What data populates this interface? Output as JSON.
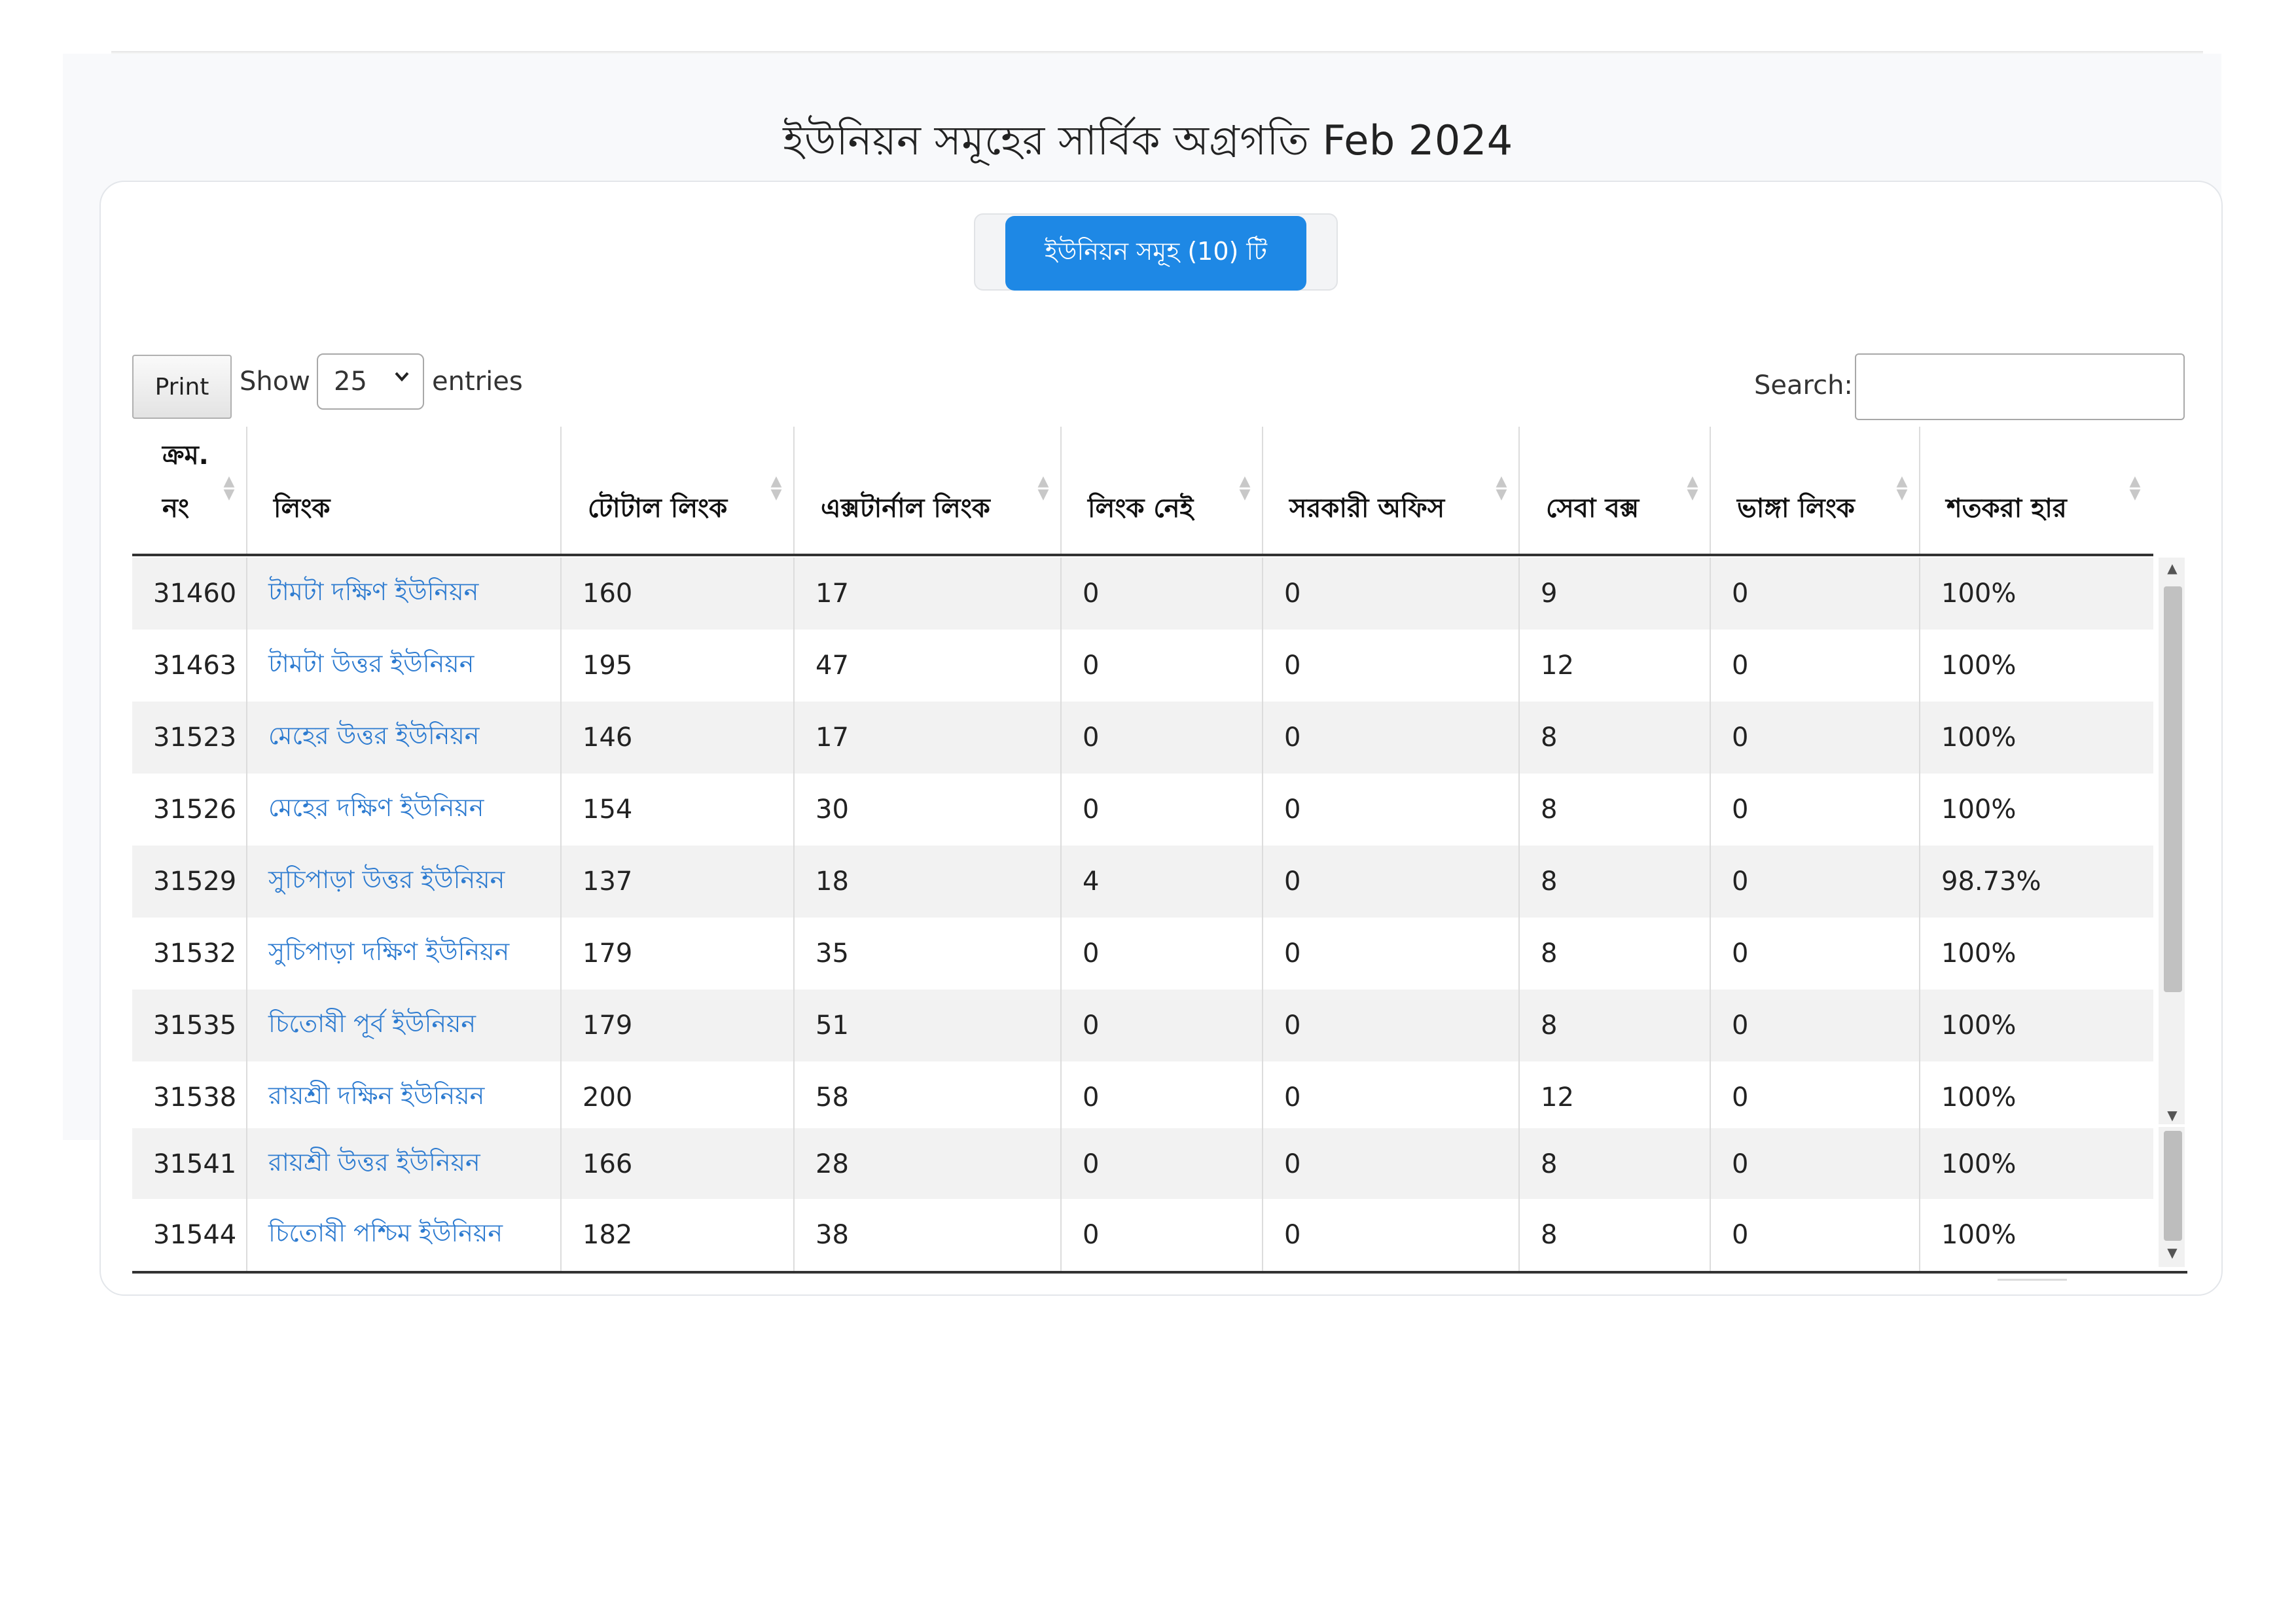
{
  "page": {
    "title": "ইউনিয়ন সমূহের সার্বিক অগ্রগতি Feb 2024"
  },
  "toolbar": {
    "union_button_label": "ইউনিয়ন সমূহ (10) টি",
    "print_label": "Print",
    "show_label": "Show",
    "entries_value": "25",
    "entries_label": "entries",
    "search_label": "Search:",
    "search_value": ""
  },
  "table": {
    "headers": [
      "ক্রম. নং",
      "লিংক",
      "টোটাল লিংক",
      "এক্সটার্নাল লিংক",
      "লিংক নেই",
      "সরকারী অফিস",
      "সেবা বক্স",
      "ভাঙ্গা লিংক",
      "শতকরা হার"
    ],
    "header_line1": "ক্রম.",
    "header_line2": "নং",
    "rows": [
      [
        "31460",
        "টামটা দক্ষিণ ইউনিয়ন",
        "160",
        "17",
        "0",
        "0",
        "9",
        "0",
        "100%"
      ],
      [
        "31463",
        "টামটা উত্তর ইউনিয়ন",
        "195",
        "47",
        "0",
        "0",
        "12",
        "0",
        "100%"
      ],
      [
        "31523",
        "মেহের উত্তর ইউনিয়ন",
        "146",
        "17",
        "0",
        "0",
        "8",
        "0",
        "100%"
      ],
      [
        "31526",
        "মেহের দক্ষিণ ইউনিয়ন",
        "154",
        "30",
        "0",
        "0",
        "8",
        "0",
        "100%"
      ],
      [
        "31529",
        "সুচিপাড়া উত্তর ইউনিয়ন",
        "137",
        "18",
        "4",
        "0",
        "8",
        "0",
        "98.73%"
      ],
      [
        "31532",
        "সুচিপাড়া দক্ষিণ ইউনিয়ন",
        "179",
        "35",
        "0",
        "0",
        "8",
        "0",
        "100%"
      ],
      [
        "31535",
        "চিতোষী পূর্ব ইউনিয়ন",
        "179",
        "51",
        "0",
        "0",
        "8",
        "0",
        "100%"
      ],
      [
        "31538",
        "রায়শ্রী দক্ষিন ইউনিয়ন",
        "200",
        "58",
        "0",
        "0",
        "12",
        "0",
        "100%"
      ],
      [
        "31541",
        "রায়শ্রী উত্তর ইউনিয়ন",
        "166",
        "28",
        "0",
        "0",
        "8",
        "0",
        "100%"
      ],
      [
        "31544",
        "চিতোষী পশ্চিম ইউনিয়ন",
        "182",
        "38",
        "0",
        "0",
        "8",
        "0",
        "100%"
      ]
    ]
  },
  "icons": {
    "sort": "sort-arrows-icon",
    "select_chevron": "chevron-down-icon",
    "scroll_up": "scroll-up-icon",
    "scroll_down": "scroll-down-icon"
  },
  "colors": {
    "primary": "#1e88e5",
    "link": "#2d7bd0",
    "row_stripe": "#f2f2f2"
  }
}
